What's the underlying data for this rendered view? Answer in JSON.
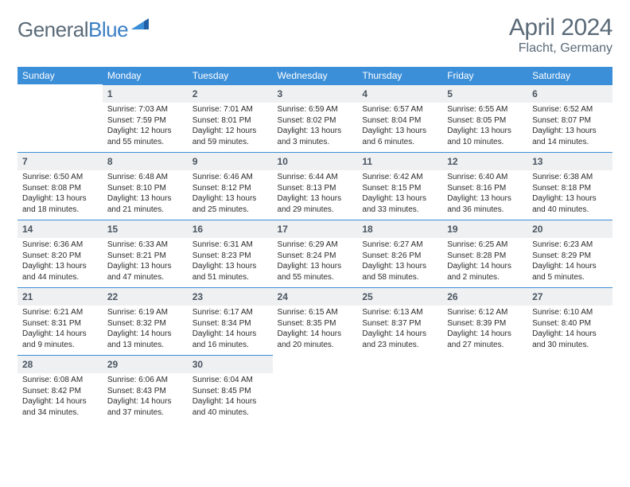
{
  "logo": {
    "word1": "General",
    "word2": "Blue"
  },
  "title": "April 2024",
  "location": "Flacht, Germany",
  "colors": {
    "header_bg": "#3b8ed8",
    "header_text": "#ffffff",
    "daynum_bg": "#eef0f2",
    "daynum_border": "#3b8ed8",
    "body_text": "#2b2b2b",
    "muted_text": "#5a6a78"
  },
  "day_headers": [
    "Sunday",
    "Monday",
    "Tuesday",
    "Wednesday",
    "Thursday",
    "Friday",
    "Saturday"
  ],
  "weeks": [
    [
      null,
      {
        "n": "1",
        "sr": "Sunrise: 7:03 AM",
        "ss": "Sunset: 7:59 PM",
        "d1": "Daylight: 12 hours",
        "d2": "and 55 minutes."
      },
      {
        "n": "2",
        "sr": "Sunrise: 7:01 AM",
        "ss": "Sunset: 8:01 PM",
        "d1": "Daylight: 12 hours",
        "d2": "and 59 minutes."
      },
      {
        "n": "3",
        "sr": "Sunrise: 6:59 AM",
        "ss": "Sunset: 8:02 PM",
        "d1": "Daylight: 13 hours",
        "d2": "and 3 minutes."
      },
      {
        "n": "4",
        "sr": "Sunrise: 6:57 AM",
        "ss": "Sunset: 8:04 PM",
        "d1": "Daylight: 13 hours",
        "d2": "and 6 minutes."
      },
      {
        "n": "5",
        "sr": "Sunrise: 6:55 AM",
        "ss": "Sunset: 8:05 PM",
        "d1": "Daylight: 13 hours",
        "d2": "and 10 minutes."
      },
      {
        "n": "6",
        "sr": "Sunrise: 6:52 AM",
        "ss": "Sunset: 8:07 PM",
        "d1": "Daylight: 13 hours",
        "d2": "and 14 minutes."
      }
    ],
    [
      {
        "n": "7",
        "sr": "Sunrise: 6:50 AM",
        "ss": "Sunset: 8:08 PM",
        "d1": "Daylight: 13 hours",
        "d2": "and 18 minutes."
      },
      {
        "n": "8",
        "sr": "Sunrise: 6:48 AM",
        "ss": "Sunset: 8:10 PM",
        "d1": "Daylight: 13 hours",
        "d2": "and 21 minutes."
      },
      {
        "n": "9",
        "sr": "Sunrise: 6:46 AM",
        "ss": "Sunset: 8:12 PM",
        "d1": "Daylight: 13 hours",
        "d2": "and 25 minutes."
      },
      {
        "n": "10",
        "sr": "Sunrise: 6:44 AM",
        "ss": "Sunset: 8:13 PM",
        "d1": "Daylight: 13 hours",
        "d2": "and 29 minutes."
      },
      {
        "n": "11",
        "sr": "Sunrise: 6:42 AM",
        "ss": "Sunset: 8:15 PM",
        "d1": "Daylight: 13 hours",
        "d2": "and 33 minutes."
      },
      {
        "n": "12",
        "sr": "Sunrise: 6:40 AM",
        "ss": "Sunset: 8:16 PM",
        "d1": "Daylight: 13 hours",
        "d2": "and 36 minutes."
      },
      {
        "n": "13",
        "sr": "Sunrise: 6:38 AM",
        "ss": "Sunset: 8:18 PM",
        "d1": "Daylight: 13 hours",
        "d2": "and 40 minutes."
      }
    ],
    [
      {
        "n": "14",
        "sr": "Sunrise: 6:36 AM",
        "ss": "Sunset: 8:20 PM",
        "d1": "Daylight: 13 hours",
        "d2": "and 44 minutes."
      },
      {
        "n": "15",
        "sr": "Sunrise: 6:33 AM",
        "ss": "Sunset: 8:21 PM",
        "d1": "Daylight: 13 hours",
        "d2": "and 47 minutes."
      },
      {
        "n": "16",
        "sr": "Sunrise: 6:31 AM",
        "ss": "Sunset: 8:23 PM",
        "d1": "Daylight: 13 hours",
        "d2": "and 51 minutes."
      },
      {
        "n": "17",
        "sr": "Sunrise: 6:29 AM",
        "ss": "Sunset: 8:24 PM",
        "d1": "Daylight: 13 hours",
        "d2": "and 55 minutes."
      },
      {
        "n": "18",
        "sr": "Sunrise: 6:27 AM",
        "ss": "Sunset: 8:26 PM",
        "d1": "Daylight: 13 hours",
        "d2": "and 58 minutes."
      },
      {
        "n": "19",
        "sr": "Sunrise: 6:25 AM",
        "ss": "Sunset: 8:28 PM",
        "d1": "Daylight: 14 hours",
        "d2": "and 2 minutes."
      },
      {
        "n": "20",
        "sr": "Sunrise: 6:23 AM",
        "ss": "Sunset: 8:29 PM",
        "d1": "Daylight: 14 hours",
        "d2": "and 5 minutes."
      }
    ],
    [
      {
        "n": "21",
        "sr": "Sunrise: 6:21 AM",
        "ss": "Sunset: 8:31 PM",
        "d1": "Daylight: 14 hours",
        "d2": "and 9 minutes."
      },
      {
        "n": "22",
        "sr": "Sunrise: 6:19 AM",
        "ss": "Sunset: 8:32 PM",
        "d1": "Daylight: 14 hours",
        "d2": "and 13 minutes."
      },
      {
        "n": "23",
        "sr": "Sunrise: 6:17 AM",
        "ss": "Sunset: 8:34 PM",
        "d1": "Daylight: 14 hours",
        "d2": "and 16 minutes."
      },
      {
        "n": "24",
        "sr": "Sunrise: 6:15 AM",
        "ss": "Sunset: 8:35 PM",
        "d1": "Daylight: 14 hours",
        "d2": "and 20 minutes."
      },
      {
        "n": "25",
        "sr": "Sunrise: 6:13 AM",
        "ss": "Sunset: 8:37 PM",
        "d1": "Daylight: 14 hours",
        "d2": "and 23 minutes."
      },
      {
        "n": "26",
        "sr": "Sunrise: 6:12 AM",
        "ss": "Sunset: 8:39 PM",
        "d1": "Daylight: 14 hours",
        "d2": "and 27 minutes."
      },
      {
        "n": "27",
        "sr": "Sunrise: 6:10 AM",
        "ss": "Sunset: 8:40 PM",
        "d1": "Daylight: 14 hours",
        "d2": "and 30 minutes."
      }
    ],
    [
      {
        "n": "28",
        "sr": "Sunrise: 6:08 AM",
        "ss": "Sunset: 8:42 PM",
        "d1": "Daylight: 14 hours",
        "d2": "and 34 minutes."
      },
      {
        "n": "29",
        "sr": "Sunrise: 6:06 AM",
        "ss": "Sunset: 8:43 PM",
        "d1": "Daylight: 14 hours",
        "d2": "and 37 minutes."
      },
      {
        "n": "30",
        "sr": "Sunrise: 6:04 AM",
        "ss": "Sunset: 8:45 PM",
        "d1": "Daylight: 14 hours",
        "d2": "and 40 minutes."
      },
      null,
      null,
      null,
      null
    ]
  ]
}
